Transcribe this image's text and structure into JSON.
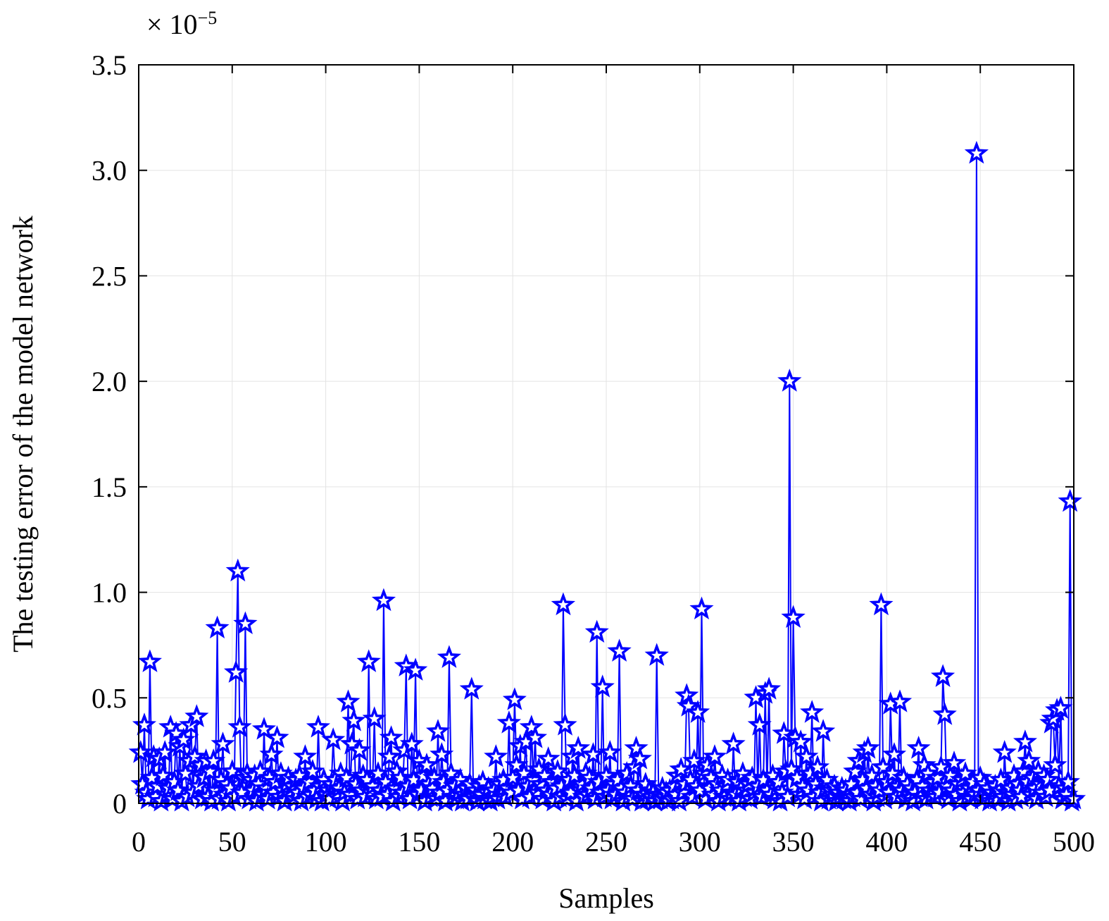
{
  "chart_data": {
    "type": "line",
    "xlabel": "Samples",
    "ylabel": "The testing error of the model network",
    "y_scale_label": "× 10",
    "y_scale_exponent": "−5",
    "xlim": [
      0,
      500
    ],
    "ylim": [
      0,
      3.5
    ],
    "xticks": [
      0,
      50,
      100,
      150,
      200,
      250,
      300,
      350,
      400,
      450,
      500
    ],
    "yticks": [
      0,
      0.5,
      {
        "value": 1,
        "label": "1.0"
      },
      1.5,
      {
        "value": 2,
        "label": "2.0"
      },
      2.5,
      {
        "value": 3,
        "label": "3.0"
      },
      3.5
    ],
    "grid": true,
    "marker": "star",
    "x": [
      1,
      2,
      3,
      4,
      5,
      6,
      7,
      8,
      9,
      10,
      11,
      12,
      13,
      14,
      15,
      16,
      17,
      18,
      19,
      20,
      21,
      22,
      23,
      24,
      25,
      26,
      27,
      28,
      29,
      30,
      31,
      32,
      33,
      34,
      35,
      36,
      37,
      38,
      39,
      40,
      41,
      42,
      43,
      44,
      45,
      46,
      47,
      48,
      49,
      50,
      51,
      52,
      53,
      54,
      55,
      56,
      57,
      58,
      59,
      60,
      61,
      62,
      63,
      64,
      65,
      66,
      67,
      68,
      69,
      70,
      71,
      72,
      73,
      74,
      75,
      76,
      77,
      78,
      79,
      80,
      81,
      82,
      83,
      84,
      85,
      86,
      87,
      88,
      89,
      90,
      91,
      92,
      93,
      94,
      95,
      96,
      97,
      98,
      99,
      100,
      101,
      102,
      103,
      104,
      105,
      106,
      107,
      108,
      109,
      110,
      111,
      112,
      113,
      114,
      115,
      116,
      117,
      118,
      119,
      120,
      121,
      122,
      123,
      124,
      125,
      126,
      127,
      128,
      129,
      130,
      131,
      132,
      133,
      134,
      135,
      136,
      137,
      138,
      139,
      140,
      141,
      142,
      143,
      144,
      145,
      146,
      147,
      148,
      149,
      150,
      151,
      152,
      153,
      154,
      155,
      156,
      157,
      158,
      159,
      160,
      161,
      162,
      163,
      164,
      165,
      166,
      167,
      168,
      169,
      170,
      171,
      172,
      173,
      174,
      175,
      176,
      177,
      178,
      179,
      180,
      181,
      182,
      183,
      184,
      185,
      186,
      187,
      188,
      189,
      190,
      191,
      192,
      193,
      194,
      195,
      196,
      197,
      198,
      199,
      200,
      201,
      202,
      203,
      204,
      205,
      206,
      207,
      208,
      209,
      210,
      211,
      212,
      213,
      214,
      215,
      216,
      217,
      218,
      219,
      220,
      221,
      222,
      223,
      224,
      225,
      226,
      227,
      228,
      229,
      230,
      231,
      232,
      233,
      234,
      235,
      236,
      237,
      238,
      239,
      240,
      241,
      242,
      243,
      244,
      245,
      246,
      247,
      248,
      249,
      250,
      251,
      252,
      253,
      254,
      255,
      256,
      257,
      258,
      259,
      260,
      261,
      262,
      263,
      264,
      265,
      266,
      267,
      268,
      269,
      270,
      271,
      272,
      273,
      274,
      275,
      276,
      277,
      278,
      279,
      280,
      281,
      282,
      283,
      284,
      285,
      286,
      287,
      288,
      289,
      290,
      291,
      292,
      293,
      294,
      295,
      296,
      297,
      298,
      299,
      300,
      301,
      302,
      303,
      304,
      305,
      306,
      307,
      308,
      309,
      310,
      311,
      312,
      313,
      314,
      315,
      316,
      317,
      318,
      319,
      320,
      321,
      322,
      323,
      324,
      325,
      326,
      327,
      328,
      329,
      330,
      331,
      332,
      333,
      334,
      335,
      336,
      337,
      338,
      339,
      340,
      341,
      342,
      343,
      344,
      345,
      346,
      347,
      348,
      349,
      350,
      351,
      352,
      353,
      354,
      355,
      356,
      357,
      358,
      359,
      360,
      361,
      362,
      363,
      364,
      365,
      366,
      367,
      368,
      369,
      370,
      371,
      372,
      373,
      374,
      375,
      376,
      377,
      378,
      379,
      380,
      381,
      382,
      383,
      384,
      385,
      386,
      387,
      388,
      389,
      390,
      391,
      392,
      393,
      394,
      395,
      396,
      397,
      398,
      399,
      400,
      401,
      402,
      403,
      404,
      405,
      406,
      407,
      408,
      409,
      410,
      411,
      412,
      413,
      414,
      415,
      416,
      417,
      418,
      419,
      420,
      421,
      422,
      423,
      424,
      425,
      426,
      427,
      428,
      429,
      430,
      431,
      432,
      433,
      434,
      435,
      436,
      437,
      438,
      439,
      440,
      441,
      442,
      443,
      444,
      445,
      446,
      447,
      448,
      449,
      450,
      451,
      452,
      453,
      454,
      455,
      456,
      457,
      458,
      459,
      460,
      461,
      462,
      463,
      464,
      465,
      466,
      467,
      468,
      469,
      470,
      471,
      472,
      473,
      474,
      475,
      476,
      477,
      478,
      479,
      480,
      481,
      482,
      483,
      484,
      485,
      486,
      487,
      488,
      489,
      490,
      491,
      492,
      493,
      494,
      495,
      496,
      497,
      498,
      499,
      500
    ],
    "series": [
      {
        "color": "#0000ff",
        "values": [
          0.24,
          0.09,
          0.37,
          0.05,
          0.02,
          0.67,
          0.12,
          0.22,
          0.03,
          0.08,
          0.21,
          0.01,
          0.13,
          0.24,
          0.04,
          0.07,
          0.36,
          0.02,
          0.1,
          0.33,
          0.06,
          0.27,
          0.01,
          0.3,
          0.14,
          0.03,
          0.2,
          0.37,
          0.05,
          0.22,
          0.41,
          0.08,
          0.18,
          0.02,
          0.12,
          0.2,
          0.03,
          0.15,
          0.01,
          0.2,
          0.06,
          0.83,
          0.02,
          0.11,
          0.28,
          0.04,
          0.09,
          0.01,
          0.07,
          0.15,
          0.03,
          0.62,
          1.1,
          0.36,
          0.05,
          0.12,
          0.85,
          0.14,
          0.02,
          0.11,
          0.06,
          0.13,
          0.01,
          0.09,
          0.15,
          0.04,
          0.35,
          0.07,
          0.02,
          0.12,
          0.23,
          0.05,
          0.1,
          0.31,
          0.03,
          0.14,
          0.06,
          0.01,
          0.09,
          0.12,
          0.04,
          0.08,
          0.02,
          0.11,
          0.05,
          0.13,
          0.01,
          0.07,
          0.22,
          0.03,
          0.1,
          0.04,
          0.15,
          0.06,
          0.02,
          0.36,
          0.08,
          0.01,
          0.11,
          0.04,
          0.06,
          0.02,
          0.09,
          0.3,
          0.11,
          0.03,
          0.07,
          0.14,
          0.01,
          0.05,
          0.12,
          0.48,
          0.04,
          0.28,
          0.39,
          0.09,
          0.02,
          0.25,
          0.06,
          0.13,
          0.03,
          0.11,
          0.67,
          0.05,
          0.08,
          0.4,
          0.02,
          0.14,
          0.06,
          0.03,
          0.96,
          0.1,
          0.04,
          0.22,
          0.31,
          0.01,
          0.07,
          0.15,
          0.03,
          0.12,
          0.05,
          0.25,
          0.65,
          0.08,
          0.02,
          0.28,
          0.11,
          0.63,
          0.04,
          0.2,
          0.06,
          0.13,
          0.01,
          0.18,
          0.09,
          0.03,
          0.07,
          0.12,
          0.02,
          0.34,
          0.05,
          0.23,
          0.1,
          0.01,
          0.06,
          0.69,
          0.14,
          0.03,
          0.08,
          0.02,
          0.05,
          0.11,
          0.01,
          0.04,
          0.07,
          0.02,
          0.09,
          0.54,
          0.03,
          0.06,
          0.01,
          0.08,
          0.04,
          0.1,
          0.02,
          0.05,
          0.07,
          0.01,
          0.03,
          0.06,
          0.22,
          0.02,
          0.09,
          0.04,
          0.11,
          0.03,
          0.07,
          0.38,
          0.05,
          0.12,
          0.49,
          0.18,
          0.06,
          0.27,
          0.02,
          0.14,
          0.29,
          0.08,
          0.03,
          0.36,
          0.11,
          0.31,
          0.05,
          0.16,
          0.09,
          0.02,
          0.13,
          0.06,
          0.21,
          0.04,
          0.1,
          0.01,
          0.07,
          0.15,
          0.03,
          0.08,
          0.94,
          0.37,
          0.02,
          0.11,
          0.05,
          0.22,
          0.13,
          0.01,
          0.26,
          0.06,
          0.09,
          0.03,
          0.14,
          0.04,
          0.12,
          0.07,
          0.23,
          0.02,
          0.81,
          0.1,
          0.05,
          0.55,
          0.03,
          0.13,
          0.06,
          0.24,
          0.02,
          0.09,
          0.04,
          0.11,
          0.72,
          0.07,
          0.01,
          0.05,
          0.14,
          0.03,
          0.08,
          0.02,
          0.17,
          0.26,
          0.06,
          0.21,
          0.01,
          0.04,
          0.09,
          0.02,
          0.06,
          0.03,
          0.05,
          0.01,
          0.7,
          0.04,
          0.02,
          0.07,
          0.03,
          0.05,
          0.01,
          0.06,
          0.02,
          0.08,
          0.04,
          0.13,
          0.01,
          0.16,
          0.05,
          0.09,
          0.51,
          0.46,
          0.11,
          0.03,
          0.2,
          0.08,
          0.43,
          0.06,
          0.92,
          0.14,
          0.02,
          0.18,
          0.07,
          0.12,
          0.04,
          0.22,
          0.09,
          0.01,
          0.06,
          0.13,
          0.03,
          0.08,
          0.11,
          0.02,
          0.05,
          0.28,
          0.04,
          0.1,
          0.01,
          0.07,
          0.14,
          0.03,
          0.06,
          0.09,
          0.02,
          0.12,
          0.05,
          0.5,
          0.08,
          0.37,
          0.03,
          0.11,
          0.52,
          0.06,
          0.54,
          0.04,
          0.13,
          0.02,
          0.07,
          0.1,
          0.01,
          0.05,
          0.33,
          0.15,
          0.03,
          2.0,
          0.16,
          0.88,
          0.31,
          0.12,
          0.04,
          0.29,
          0.08,
          0.02,
          0.22,
          0.06,
          0.14,
          0.43,
          0.03,
          0.09,
          0.17,
          0.05,
          0.01,
          0.34,
          0.07,
          0.11,
          0.02,
          0.06,
          0.04,
          0.08,
          0.01,
          0.05,
          0.03,
          0.07,
          0.02,
          0.06,
          0.04,
          0.01,
          0.09,
          0.03,
          0.15,
          0.05,
          0.2,
          0.02,
          0.11,
          0.24,
          0.07,
          0.26,
          0.04,
          0.13,
          0.01,
          0.08,
          0.03,
          0.06,
          0.94,
          0.17,
          0.02,
          0.1,
          0.05,
          0.47,
          0.14,
          0.23,
          0.03,
          0.08,
          0.48,
          0.06,
          0.12,
          0.02,
          0.09,
          0.04,
          0.07,
          0.01,
          0.05,
          0.11,
          0.26,
          0.03,
          0.08,
          0.18,
          0.02,
          0.14,
          0.06,
          0.04,
          0.1,
          0.03,
          0.12,
          0.05,
          0.17,
          0.6,
          0.42,
          0.08,
          0.02,
          0.13,
          0.06,
          0.19,
          0.04,
          0.09,
          0.01,
          0.11,
          0.05,
          0.14,
          0.03,
          0.07,
          0.02,
          0.1,
          0.04,
          3.08,
          0.06,
          0.12,
          0.02,
          0.09,
          0.04,
          0.07,
          0.01,
          0.05,
          0.03,
          0.08,
          0.02,
          0.06,
          0.11,
          0.03,
          0.24,
          0.05,
          0.01,
          0.07,
          0.04,
          0.13,
          0.02,
          0.09,
          0.06,
          0.03,
          0.15,
          0.29,
          0.1,
          0.2,
          0.04,
          0.12,
          0.07,
          0.02,
          0.15,
          0.09,
          0.05,
          0.13,
          0.03,
          0.11,
          0.06,
          0.38,
          0.4,
          0.18,
          0.44,
          0.08,
          0.45,
          0.02,
          0.07,
          0.04,
          0.1,
          1.43,
          0.01,
          0.02
        ]
      }
    ]
  }
}
